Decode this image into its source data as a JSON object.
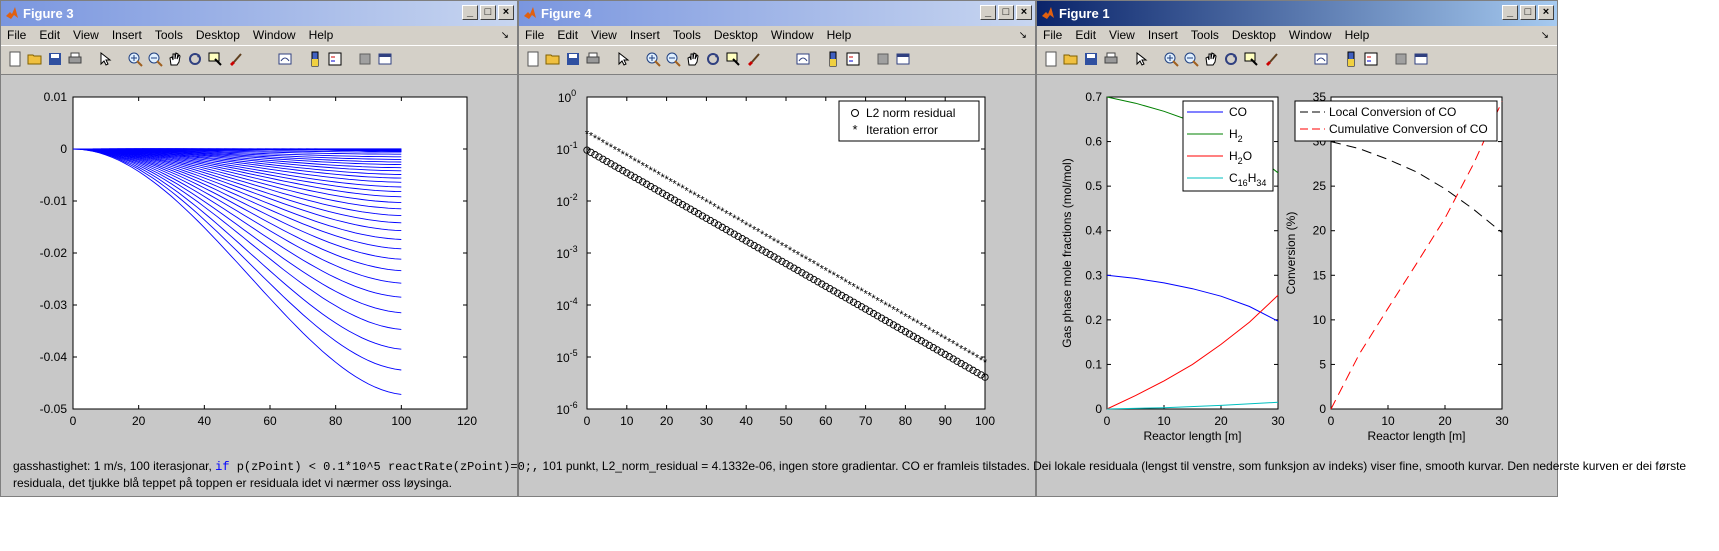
{
  "windows": [
    {
      "id": "fig3",
      "title": "Figure 3",
      "chart_data": {
        "type": "line",
        "title": "",
        "xlabel": "",
        "ylabel": "",
        "xlim": [
          0,
          120
        ],
        "ylim": [
          -0.05,
          0.01
        ],
        "xticks": [
          "0",
          "20",
          "40",
          "60",
          "80",
          "100",
          "120"
        ],
        "yticks": [
          "0.01",
          "0",
          "-0.01",
          "-0.02",
          "-0.03",
          "-0.04",
          "-0.05"
        ],
        "grid": false,
        "series_description": "family of residual curves starting at 0 at x=0 and ending at x=100; deepest curve reaches -0.047",
        "end_values": [
          -0.0472,
          -0.0425,
          -0.0385,
          -0.0347,
          -0.0315,
          -0.0285,
          -0.0258,
          -0.0234,
          -0.0212,
          -0.0192,
          -0.0174,
          -0.0157,
          -0.0142,
          -0.0128,
          -0.0115,
          -0.0103,
          -0.0092,
          -0.0082,
          -0.0073,
          -0.0064,
          -0.0056,
          -0.0049,
          -0.0042,
          -0.0036,
          -0.003,
          -0.0025,
          -0.002,
          -0.0015,
          -0.001,
          -0.0006,
          -0.0002
        ]
      }
    },
    {
      "id": "fig4",
      "title": "Figure 4",
      "chart_data": {
        "type": "scatter",
        "title": "",
        "xlabel": "",
        "ylabel": "",
        "xlim": [
          0,
          100
        ],
        "ylim": [
          1e-06,
          1
        ],
        "yscale": "log",
        "xticks": [
          "0",
          "10",
          "20",
          "30",
          "40",
          "50",
          "60",
          "70",
          "80",
          "90",
          "100"
        ],
        "ytick_bases": [
          "10",
          "10",
          "10",
          "10",
          "10",
          "10",
          "10"
        ],
        "ytick_exps": [
          "0",
          "-1",
          "-2",
          "-3",
          "-4",
          "-5",
          "-6"
        ],
        "legend_position": "top-right",
        "series": [
          {
            "name": "L2 norm residual",
            "marker": "circle",
            "x_range": [
              0,
              100
            ],
            "y_start": 0.095,
            "y_end": 4.1e-06
          },
          {
            "name": "Iteration error",
            "marker": "star",
            "x_range": [
              0,
              100
            ],
            "y_start": 0.2,
            "y_end": 8e-06
          }
        ]
      }
    },
    {
      "id": "fig1",
      "title": "Figure 1",
      "charts": [
        {
          "type": "line",
          "xlabel": "Reactor length [m]",
          "ylabel": "Gas phase mole fractions (mol/mol)",
          "xlim": [
            0,
            30
          ],
          "ylim": [
            0,
            0.7
          ],
          "xticks": [
            "0",
            "10",
            "20",
            "30"
          ],
          "yticks": [
            "0",
            "0.1",
            "0.2",
            "0.3",
            "0.4",
            "0.5",
            "0.6",
            "0.7"
          ],
          "legend_position": "top-right",
          "series": [
            {
              "name": "CO",
              "base": "CO",
              "sub": "",
              "color": "#0000ff",
              "x": [
                0,
                5,
                10,
                15,
                20,
                25,
                30
              ],
              "y": [
                0.3,
                0.293,
                0.283,
                0.27,
                0.253,
                0.23,
                0.197
              ]
            },
            {
              "name": "H2",
              "base": "H",
              "sub": "2",
              "color": "#008000",
              "x": [
                0,
                5,
                10,
                15,
                20,
                25,
                30
              ],
              "y": [
                0.7,
                0.686,
                0.668,
                0.645,
                0.617,
                0.58,
                0.53
              ]
            },
            {
              "name": "H2O",
              "base": "H",
              "sub": "2",
              "tail": "O",
              "color": "#ff0000",
              "x": [
                0,
                5,
                10,
                15,
                20,
                25,
                30
              ],
              "y": [
                0.0,
                0.03,
                0.063,
                0.1,
                0.145,
                0.195,
                0.255
              ]
            },
            {
              "name": "C16H34",
              "base": "C",
              "sub": "16",
              "mid": "H",
              "sub2": "34",
              "color": "#00bfbf",
              "x": [
                0,
                10,
                20,
                30
              ],
              "y": [
                0.0,
                0.003,
                0.008,
                0.015
              ]
            }
          ]
        },
        {
          "type": "line",
          "xlabel": "Reactor length [m]",
          "ylabel": "Conversion (%)",
          "xlim": [
            0,
            30
          ],
          "ylim": [
            0,
            35
          ],
          "xticks": [
            "0",
            "10",
            "20",
            "30"
          ],
          "yticks": [
            "0",
            "5",
            "10",
            "15",
            "20",
            "25",
            "30",
            "35"
          ],
          "legend_position": "top-right",
          "series": [
            {
              "name": "Local Conversion of CO",
              "color": "#000000",
              "dash": "10,6",
              "x": [
                0,
                5,
                10,
                15,
                20,
                25,
                30
              ],
              "y": [
                30,
                29.2,
                28.0,
                26.6,
                24.7,
                22.4,
                19.8
              ]
            },
            {
              "name": "Cumulative Conversion of CO",
              "color": "#ff0000",
              "dash": "10,6",
              "x": [
                0,
                5,
                10,
                15,
                20,
                25,
                30
              ],
              "y": [
                0,
                6.2,
                11.3,
                16.3,
                21.4,
                27.5,
                34.5
              ]
            }
          ]
        }
      ]
    }
  ],
  "menu": [
    "File",
    "Edit",
    "View",
    "Insert",
    "Tools",
    "Desktop",
    "Window",
    "Help"
  ],
  "caption": {
    "part1": "gasshastighet: 1 m/s, 100 iterasjonar, ",
    "code_kw": "if",
    "code_rest": " p(zPoint) < 0.1*10^5  reactRate(zPoint)=0;,",
    "part2": "  101 punkt, L2_norm_residual =  4.1332e-06, ingen store gradientar. CO er framleis tilstades. Dei lokale residuala (lengst til venstre, som funksjon av indeks) viser fine, smooth kurvar. Den nederste kurven er dei første residuala, det tjukke blå teppet på toppen er residuala idet vi nærmer oss løysinga."
  },
  "colors": {
    "titlebar_active": "#0a246a",
    "titlebar_inactive": "#7a96df",
    "chrome": "#d4d0c8",
    "figure_bg": "#c8c8c8"
  }
}
